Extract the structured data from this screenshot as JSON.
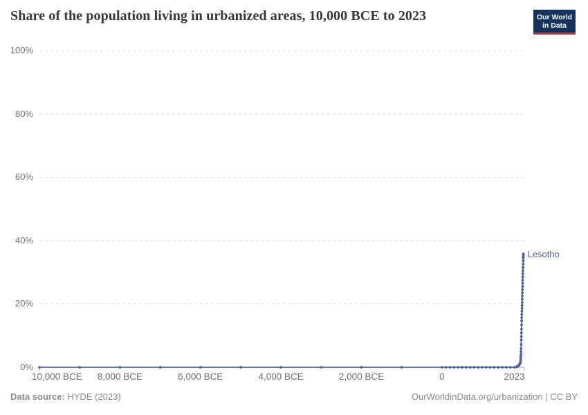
{
  "header": {
    "title": "Share of the population living in urbanized areas, 10,000 BCE to 2023"
  },
  "logo": {
    "line1": "Our World",
    "line2": "in Data",
    "bg_color": "#17335c",
    "accent_color": "#c5302f"
  },
  "chart_data": {
    "type": "line",
    "title": "Share of the population living in urbanized areas, 10,000 BCE to 2023",
    "xlabel": "",
    "ylabel": "Share of the population living in urbanized areas",
    "xlim": [
      -10000,
      2023
    ],
    "ylim": [
      0,
      100
    ],
    "grid": "horizontal dashed",
    "grid_color": "#dcdcdc",
    "axis_color": "#a5a5a5",
    "yticks": [
      {
        "value": 0,
        "label": "0%"
      },
      {
        "value": 20,
        "label": "20%"
      },
      {
        "value": 40,
        "label": "40%"
      },
      {
        "value": 60,
        "label": "60%"
      },
      {
        "value": 80,
        "label": "80%"
      },
      {
        "value": 100,
        "label": "100%"
      }
    ],
    "xticks": [
      {
        "year": -10000,
        "label": "10,000 BCE"
      },
      {
        "year": -8000,
        "label": "8,000 BCE"
      },
      {
        "year": -6000,
        "label": "6,000 BCE"
      },
      {
        "year": -4000,
        "label": "4,000 BCE"
      },
      {
        "year": -2000,
        "label": "2,000 BCE"
      },
      {
        "year": 0,
        "label": "0"
      },
      {
        "year": 2023,
        "label": "2023"
      }
    ],
    "series": [
      {
        "name": "Lesotho",
        "color": "#4a639b",
        "points": [
          [
            -10000,
            0
          ],
          [
            -9000,
            0
          ],
          [
            -8000,
            0
          ],
          [
            -7000,
            0
          ],
          [
            -6000,
            0
          ],
          [
            -5000,
            0
          ],
          [
            -4000,
            0
          ],
          [
            -3000,
            0
          ],
          [
            -2000,
            0
          ],
          [
            -1000,
            0
          ],
          [
            0,
            0
          ],
          [
            100,
            0
          ],
          [
            200,
            0
          ],
          [
            300,
            0
          ],
          [
            400,
            0
          ],
          [
            500,
            0
          ],
          [
            600,
            0
          ],
          [
            700,
            0
          ],
          [
            800,
            0
          ],
          [
            900,
            0
          ],
          [
            1000,
            0
          ],
          [
            1100,
            0
          ],
          [
            1200,
            0
          ],
          [
            1300,
            0
          ],
          [
            1400,
            0
          ],
          [
            1500,
            0
          ],
          [
            1600,
            0
          ],
          [
            1700,
            0
          ],
          [
            1800,
            0
          ],
          [
            1850,
            0.1
          ],
          [
            1860,
            0.15
          ],
          [
            1870,
            0.2
          ],
          [
            1880,
            0.3
          ],
          [
            1890,
            0.4
          ],
          [
            1900,
            0.5
          ],
          [
            1910,
            0.6
          ],
          [
            1920,
            0.8
          ],
          [
            1930,
            1.0
          ],
          [
            1940,
            1.2
          ],
          [
            1950,
            1.5
          ],
          [
            1952,
            1.8
          ],
          [
            1954,
            2.1
          ],
          [
            1956,
            2.5
          ],
          [
            1958,
            3.0
          ],
          [
            1960,
            3.5
          ],
          [
            1962,
            4.2
          ],
          [
            1964,
            5.0
          ],
          [
            1966,
            5.9
          ],
          [
            1968,
            7.2
          ],
          [
            1970,
            8.6
          ],
          [
            1972,
            9.7
          ],
          [
            1974,
            10.9
          ],
          [
            1976,
            12.1
          ],
          [
            1978,
            13.4
          ],
          [
            1980,
            14.7
          ],
          [
            1982,
            15.7
          ],
          [
            1984,
            16.7
          ],
          [
            1986,
            17.7
          ],
          [
            1988,
            18.6
          ],
          [
            1990,
            19.5
          ],
          [
            1992,
            20.5
          ],
          [
            1994,
            21.5
          ],
          [
            1996,
            22.5
          ],
          [
            1998,
            23.5
          ],
          [
            2000,
            24.5
          ],
          [
            2002,
            25.5
          ],
          [
            2004,
            26.5
          ],
          [
            2006,
            27.5
          ],
          [
            2008,
            28.5
          ],
          [
            2010,
            29.5
          ],
          [
            2012,
            30.5
          ],
          [
            2014,
            31.5
          ],
          [
            2016,
            32.6
          ],
          [
            2018,
            33.6
          ],
          [
            2020,
            34.5
          ],
          [
            2021,
            35.0
          ],
          [
            2022,
            35.4
          ],
          [
            2023,
            35.8
          ]
        ]
      }
    ]
  },
  "footer": {
    "source_label": "Data source:",
    "source_value": "HYDE (2023)",
    "credit": "OurWorldinData.org/urbanization | CC BY"
  }
}
